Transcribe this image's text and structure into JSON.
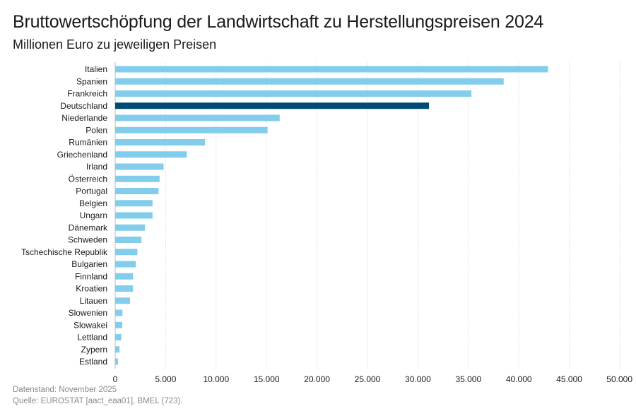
{
  "chart_data": {
    "type": "bar",
    "orientation": "horizontal",
    "title": "Bruttowertschöpfung der Landwirtschaft zu Herstellungspreisen 2024",
    "subtitle": "Millionen Euro zu jeweiligen Preisen",
    "categories": [
      "Italien",
      "Spanien",
      "Frankreich",
      "Deutschland",
      "Niederlande",
      "Polen",
      "Rumänien",
      "Griechenland",
      "Irland",
      "Österreich",
      "Portugal",
      "Belgien",
      "Ungarn",
      "Dänemark",
      "Schweden",
      "Tschechische Republik",
      "Bulgarien",
      "Finnland",
      "Kroatien",
      "Litauen",
      "Slowenien",
      "Slowakei",
      "Lettland",
      "Zypern",
      "Estland"
    ],
    "values": [
      42900,
      38500,
      35300,
      31100,
      16300,
      15100,
      8900,
      7100,
      4800,
      4400,
      4300,
      3700,
      3700,
      2950,
      2600,
      2200,
      2050,
      1770,
      1770,
      1470,
      720,
      700,
      600,
      430,
      280
    ],
    "highlight": "Deutschland",
    "xlim": [
      0,
      50000
    ],
    "xticks": [
      "0",
      "5.000",
      "10.000",
      "15.000",
      "20.000",
      "25.000",
      "30.000",
      "35.000",
      "40.000",
      "45.000",
      "50.000"
    ],
    "grid": true,
    "colors": {
      "bar": "#82cdec",
      "highlight": "#004b76",
      "grid": "#e6e6e6"
    }
  },
  "footer": {
    "datenstand": "Datenstand: November 2025",
    "quelle": "Quelle: EUROSTAT [aact_eaa01], BMEL (723)."
  }
}
